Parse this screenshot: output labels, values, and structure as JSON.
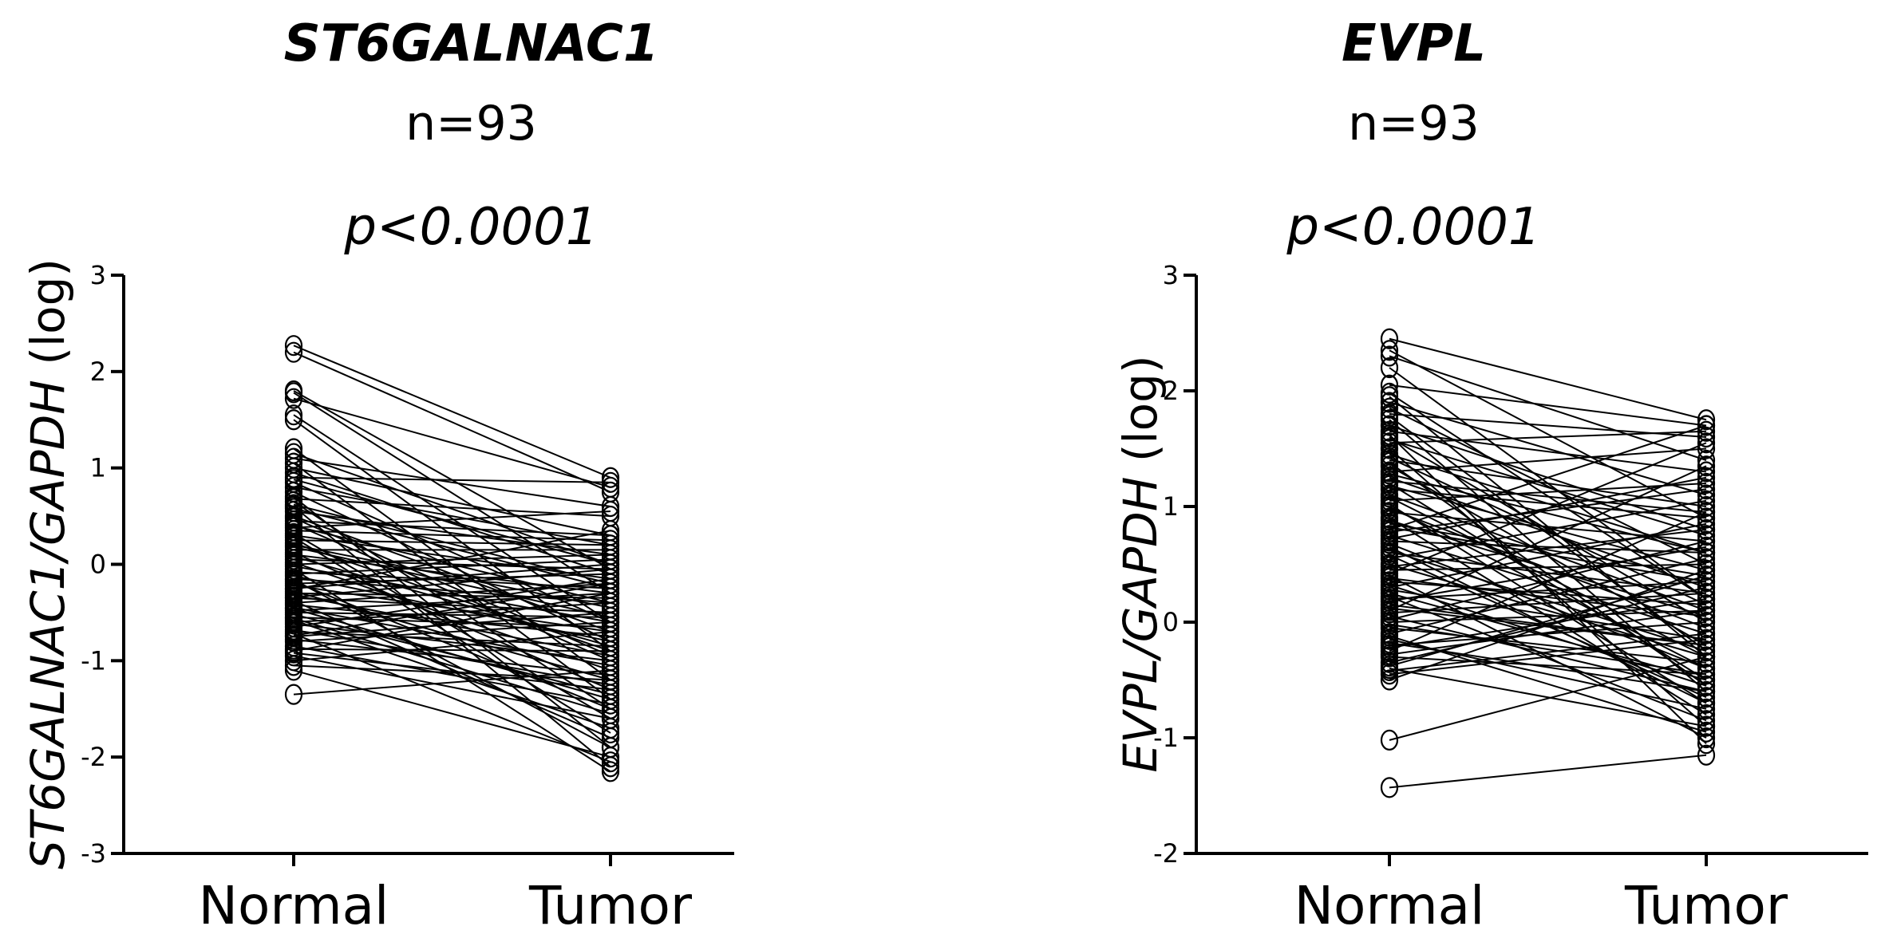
{
  "chart_data": [
    {
      "type": "scatter",
      "title": "ST6GALNAC1",
      "subtitle_n": "n=93",
      "subtitle_p": "p<0.0001",
      "ylabel_gene": "ST6GALNAC1",
      "ylabel_ref": "/GAPDH",
      "ylabel_suffix": " (log)",
      "categories": [
        "Normal",
        "Tumor"
      ],
      "ylim": [
        -3,
        3
      ],
      "yticks": [
        "-3",
        "-2",
        "-1",
        "0",
        "1",
        "2",
        "3"
      ],
      "n_pairs": 93,
      "pairs": [
        [
          2.27,
          0.9
        ],
        [
          2.2,
          0.75
        ],
        [
          1.8,
          -0.05
        ],
        [
          1.78,
          -0.3
        ],
        [
          1.72,
          0.8
        ],
        [
          1.55,
          -0.6
        ],
        [
          1.5,
          -0.9
        ],
        [
          1.2,
          -1.2
        ],
        [
          1.1,
          0.6
        ],
        [
          1.05,
          -1.4
        ],
        [
          1.0,
          0.3
        ],
        [
          0.95,
          -0.1
        ],
        [
          0.9,
          0.85
        ],
        [
          0.85,
          -0.6
        ],
        [
          0.8,
          0.2
        ],
        [
          0.75,
          -0.8
        ],
        [
          0.7,
          -1.9
        ],
        [
          0.68,
          0.5
        ],
        [
          0.62,
          -0.2
        ],
        [
          0.6,
          -2.1
        ],
        [
          0.55,
          0.1
        ],
        [
          0.5,
          -0.7
        ],
        [
          0.45,
          0.3
        ],
        [
          0.42,
          -1.0
        ],
        [
          0.4,
          -0.4
        ],
        [
          0.35,
          0.25
        ],
        [
          0.32,
          -1.6
        ],
        [
          0.3,
          -0.15
        ],
        [
          0.25,
          0.2
        ],
        [
          0.22,
          -0.9
        ],
        [
          0.2,
          -0.45
        ],
        [
          0.15,
          0.15
        ],
        [
          0.12,
          -1.3
        ],
        [
          0.1,
          -0.3
        ],
        [
          0.05,
          -0.05
        ],
        [
          0.02,
          -1.1
        ],
        [
          0.0,
          0.1
        ],
        [
          -0.02,
          -0.6
        ],
        [
          -0.05,
          -2.15
        ],
        [
          -0.08,
          -0.25
        ],
        [
          -0.1,
          0.05
        ],
        [
          -0.12,
          -0.8
        ],
        [
          -0.15,
          -0.4
        ],
        [
          -0.18,
          -1.5
        ],
        [
          -0.2,
          -0.1
        ],
        [
          -0.22,
          -0.7
        ],
        [
          -0.25,
          0.0
        ],
        [
          -0.28,
          -1.2
        ],
        [
          -0.3,
          -0.35
        ],
        [
          -0.32,
          -0.95
        ],
        [
          -0.35,
          -0.5
        ],
        [
          -0.38,
          -1.8
        ],
        [
          -0.4,
          -0.2
        ],
        [
          -0.42,
          -0.75
        ],
        [
          -0.45,
          -1.05
        ],
        [
          -0.48,
          -0.3
        ],
        [
          -0.5,
          -0.55
        ],
        [
          -0.52,
          -1.35
        ],
        [
          -0.55,
          -0.65
        ],
        [
          -0.58,
          -1.7
        ],
        [
          -0.6,
          -0.4
        ],
        [
          -0.62,
          -1.0
        ],
        [
          -0.65,
          -0.15
        ],
        [
          -0.68,
          -1.25
        ],
        [
          -0.7,
          -0.85
        ],
        [
          -0.72,
          -2.05
        ],
        [
          -0.75,
          -0.5
        ],
        [
          -0.78,
          -1.15
        ],
        [
          -0.8,
          -0.6
        ],
        [
          -0.85,
          -1.45
        ],
        [
          -0.88,
          -0.9
        ],
        [
          -0.9,
          -0.3
        ],
        [
          -0.95,
          -1.6
        ],
        [
          -1.0,
          -0.7
        ],
        [
          -1.05,
          -1.2
        ],
        [
          -1.1,
          -2.0
        ],
        [
          -1.35,
          -1.1
        ],
        [
          0.88,
          0.0
        ],
        [
          0.65,
          -1.5
        ],
        [
          0.48,
          -0.95
        ],
        [
          0.28,
          -1.75
        ],
        [
          0.08,
          -0.85
        ],
        [
          -0.16,
          -1.9
        ],
        [
          -0.34,
          -0.05
        ],
        [
          -0.56,
          -1.55
        ],
        [
          -0.74,
          -0.2
        ],
        [
          -0.92,
          -1.3
        ],
        [
          0.38,
          0.55
        ],
        [
          0.18,
          -0.55
        ],
        [
          -0.26,
          0.35
        ],
        [
          -0.46,
          -1.4
        ],
        [
          0.58,
          -0.25
        ],
        [
          1.15,
          0.0
        ]
      ]
    },
    {
      "type": "scatter",
      "title": "EVPL",
      "subtitle_n": "n=93",
      "subtitle_p": "p<0.0001",
      "ylabel_gene": "EVPL",
      "ylabel_ref": "/GAPDH",
      "ylabel_suffix": " (log)",
      "categories": [
        "Normal",
        "Tumor"
      ],
      "ylim": [
        -2,
        3
      ],
      "yticks": [
        "-2",
        "-1",
        "0",
        "1",
        "2",
        "3"
      ],
      "n_pairs": 93,
      "pairs": [
        [
          2.45,
          1.75
        ],
        [
          2.35,
          0.9
        ],
        [
          2.3,
          1.4
        ],
        [
          2.2,
          0.2
        ],
        [
          2.05,
          1.7
        ],
        [
          1.95,
          -0.3
        ],
        [
          1.9,
          1.1
        ],
        [
          1.85,
          0.5
        ],
        [
          1.8,
          1.6
        ],
        [
          1.75,
          -0.6
        ],
        [
          1.7,
          0.8
        ],
        [
          1.65,
          1.3
        ],
        [
          1.6,
          0.0
        ],
        [
          1.55,
          1.65
        ],
        [
          1.5,
          -0.9
        ],
        [
          1.45,
          0.6
        ],
        [
          1.4,
          1.0
        ],
        [
          1.35,
          -0.2
        ],
        [
          1.3,
          1.5
        ],
        [
          1.25,
          0.3
        ],
        [
          1.2,
          -0.5
        ],
        [
          1.15,
          0.9
        ],
        [
          1.1,
          0.1
        ],
        [
          1.05,
          1.2
        ],
        [
          1.0,
          -0.4
        ],
        [
          0.95,
          0.7
        ],
        [
          0.9,
          -0.8
        ],
        [
          0.85,
          0.4
        ],
        [
          0.8,
          1.7
        ],
        [
          0.75,
          -0.1
        ],
        [
          0.7,
          0.6
        ],
        [
          0.65,
          -0.7
        ],
        [
          0.6,
          0.25
        ],
        [
          0.55,
          1.05
        ],
        [
          0.5,
          -0.3
        ],
        [
          0.45,
          0.5
        ],
        [
          0.4,
          -1.0
        ],
        [
          0.35,
          0.15
        ],
        [
          0.3,
          0.85
        ],
        [
          0.25,
          -0.5
        ],
        [
          0.2,
          0.35
        ],
        [
          0.15,
          -0.2
        ],
        [
          0.1,
          1.35
        ],
        [
          0.05,
          -0.6
        ],
        [
          0.0,
          0.1
        ],
        [
          -0.05,
          -0.35
        ],
        [
          -0.1,
          0.55
        ],
        [
          -0.15,
          -0.75
        ],
        [
          -0.2,
          0.0
        ],
        [
          -0.25,
          0.95
        ],
        [
          -0.3,
          -0.45
        ],
        [
          -0.35,
          0.3
        ],
        [
          -0.4,
          -0.9
        ],
        [
          -0.45,
          -0.15
        ],
        [
          -0.5,
          0.45
        ],
        [
          -1.02,
          -0.3
        ],
        [
          -1.43,
          -1.15
        ],
        [
          1.98,
          0.2
        ],
        [
          1.78,
          -0.25
        ],
        [
          1.58,
          0.75
        ],
        [
          1.38,
          -0.55
        ],
        [
          1.18,
          0.45
        ],
        [
          0.98,
          -0.05
        ],
        [
          0.78,
          1.15
        ],
        [
          0.58,
          -0.65
        ],
        [
          0.38,
          0.05
        ],
        [
          0.18,
          0.65
        ],
        [
          -0.02,
          -0.45
        ],
        [
          -0.22,
          0.2
        ],
        [
          -0.42,
          -0.1
        ],
        [
          1.62,
          -1.05
        ],
        [
          1.42,
          0.15
        ],
        [
          1.22,
          0.95
        ],
        [
          1.02,
          -0.7
        ],
        [
          0.82,
          0.35
        ],
        [
          0.62,
          -0.25
        ],
        [
          0.42,
          1.55
        ],
        [
          0.22,
          -0.85
        ],
        [
          0.02,
          0.7
        ],
        [
          -0.18,
          -0.6
        ],
        [
          -0.38,
          0.4
        ],
        [
          0.68,
          -0.4
        ],
        [
          0.48,
          0.8
        ],
        [
          0.28,
          -0.15
        ],
        [
          0.08,
          0.25
        ],
        [
          -0.12,
          -0.95
        ],
        [
          0.88,
          0.05
        ],
        [
          1.08,
          -0.3
        ],
        [
          1.28,
          0.6
        ],
        [
          0.72,
          1.25
        ],
        [
          0.32,
          -0.55
        ],
        [
          -0.28,
          0.1
        ],
        [
          0.12,
          -0.2
        ]
      ]
    }
  ]
}
